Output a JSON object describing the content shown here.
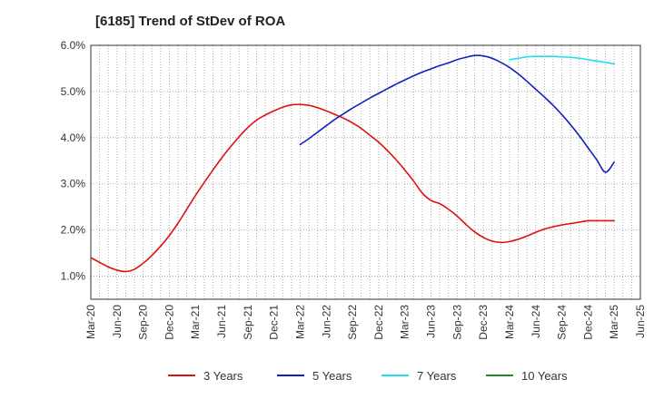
{
  "chart_data": {
    "type": "line",
    "title": "[6185]  Trend of StDev of ROA",
    "x_ticks": [
      "Mar-20",
      "Jun-20",
      "Sep-20",
      "Dec-20",
      "Mar-21",
      "Jun-21",
      "Sep-21",
      "Dec-21",
      "Mar-22",
      "Jun-22",
      "Sep-22",
      "Dec-22",
      "Mar-23",
      "Jun-23",
      "Sep-23",
      "Dec-23",
      "Mar-24",
      "Jun-24",
      "Sep-24",
      "Dec-24",
      "Mar-25",
      "Jun-25"
    ],
    "y_ticks": [
      "1.0%",
      "2.0%",
      "3.0%",
      "4.0%",
      "5.0%",
      "6.0%"
    ],
    "y_tick_values": [
      1.0,
      2.0,
      3.0,
      4.0,
      5.0,
      6.0
    ],
    "ylim": [
      0.5,
      6.0
    ],
    "grid": true,
    "legend_position": "bottom",
    "series": [
      {
        "name": "3 Years",
        "color": "#dd1111",
        "x": [
          "Mar-20",
          "Apr-20",
          "May-20",
          "Jun-20",
          "Jul-20",
          "Aug-20",
          "Sep-20",
          "Oct-20",
          "Nov-20",
          "Dec-20",
          "Jan-21",
          "Feb-21",
          "Mar-21",
          "Apr-21",
          "May-21",
          "Jun-21",
          "Jul-21",
          "Aug-21",
          "Sep-21",
          "Oct-21",
          "Nov-21",
          "Dec-21",
          "Jan-22",
          "Feb-22",
          "Mar-22",
          "Apr-22",
          "May-22",
          "Jun-22",
          "Jul-22",
          "Aug-22",
          "Sep-22",
          "Oct-22",
          "Nov-22",
          "Dec-22",
          "Jan-23",
          "Feb-23",
          "Mar-23",
          "Apr-23",
          "May-23",
          "Jun-23",
          "Jul-23",
          "Aug-23",
          "Sep-23",
          "Oct-23",
          "Nov-23",
          "Dec-23",
          "Jan-24",
          "Feb-24",
          "Mar-24",
          "Apr-24",
          "May-24",
          "Jun-24",
          "Jul-24",
          "Aug-24",
          "Sep-24",
          "Oct-24",
          "Nov-24",
          "Dec-24",
          "Jan-25",
          "Feb-25",
          "Mar-25"
        ],
        "values": [
          1.4,
          1.3,
          1.2,
          1.13,
          1.1,
          1.15,
          1.28,
          1.45,
          1.65,
          1.88,
          2.15,
          2.45,
          2.75,
          3.03,
          3.3,
          3.56,
          3.8,
          4.02,
          4.22,
          4.38,
          4.49,
          4.58,
          4.66,
          4.71,
          4.72,
          4.7,
          4.65,
          4.58,
          4.5,
          4.42,
          4.32,
          4.2,
          4.05,
          3.9,
          3.72,
          3.52,
          3.3,
          3.06,
          2.8,
          2.64,
          2.57,
          2.45,
          2.3,
          2.12,
          1.96,
          1.84,
          1.76,
          1.73,
          1.75,
          1.8,
          1.87,
          1.95,
          2.02,
          2.07,
          2.11,
          2.14,
          2.17,
          2.2,
          2.2,
          2.2,
          2.2
        ]
      },
      {
        "name": "5 Years",
        "color": "#1122bb",
        "x": [
          "Mar-22",
          "Apr-22",
          "May-22",
          "Jun-22",
          "Jul-22",
          "Aug-22",
          "Sep-22",
          "Oct-22",
          "Nov-22",
          "Dec-22",
          "Jan-23",
          "Feb-23",
          "Mar-23",
          "Apr-23",
          "May-23",
          "Jun-23",
          "Jul-23",
          "Aug-23",
          "Sep-23",
          "Oct-23",
          "Nov-23",
          "Dec-23",
          "Jan-24",
          "Feb-24",
          "Mar-24",
          "Apr-24",
          "May-24",
          "Jun-24",
          "Jul-24",
          "Aug-24",
          "Sep-24",
          "Oct-24",
          "Nov-24",
          "Dec-24",
          "Jan-25",
          "Feb-25",
          "Mar-25"
        ],
        "values": [
          3.85,
          3.98,
          4.12,
          4.26,
          4.4,
          4.52,
          4.64,
          4.75,
          4.86,
          4.96,
          5.06,
          5.16,
          5.25,
          5.34,
          5.42,
          5.49,
          5.56,
          5.62,
          5.69,
          5.74,
          5.78,
          5.77,
          5.72,
          5.63,
          5.52,
          5.38,
          5.22,
          5.05,
          4.88,
          4.7,
          4.5,
          4.28,
          4.04,
          3.78,
          3.52,
          3.25,
          3.47
        ]
      },
      {
        "name": "7 Years",
        "color": "#22ddee",
        "x": [
          "Mar-24",
          "Apr-24",
          "May-24",
          "Jun-24",
          "Jul-24",
          "Aug-24",
          "Sep-24",
          "Oct-24",
          "Nov-24",
          "Dec-24",
          "Jan-25",
          "Feb-25",
          "Mar-25"
        ],
        "values": [
          5.69,
          5.72,
          5.75,
          5.76,
          5.76,
          5.76,
          5.75,
          5.74,
          5.72,
          5.69,
          5.66,
          5.63,
          5.6
        ]
      },
      {
        "name": "10 Years",
        "color": "#228822",
        "x": [],
        "values": []
      }
    ]
  }
}
